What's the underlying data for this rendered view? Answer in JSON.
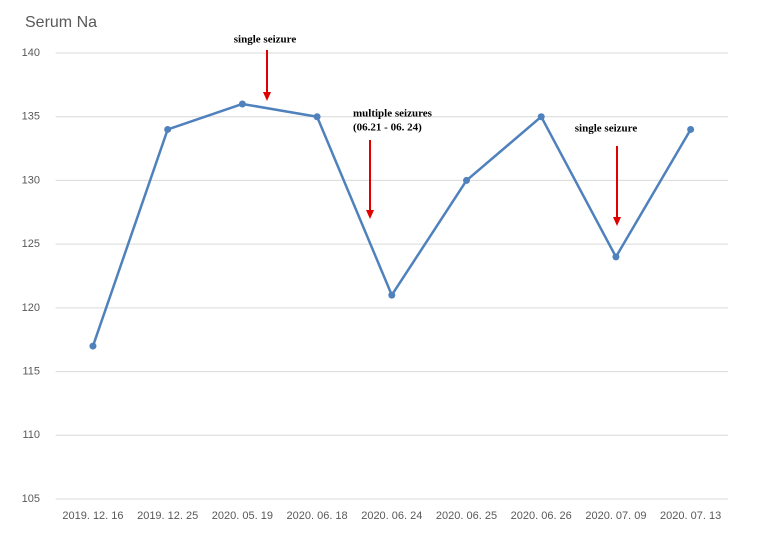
{
  "chart_data": {
    "type": "line",
    "title": "Serum Na",
    "categories": [
      "2019. 12. 16",
      "2019. 12. 25",
      "2020. 05. 19",
      "2020. 06. 18",
      "2020. 06. 24",
      "2020. 06. 25",
      "2020. 06. 26",
      "2020. 07. 09",
      "2020. 07. 13"
    ],
    "series": [
      {
        "name": "Serum Na",
        "color": "#4f81bd",
        "values": [
          117,
          134,
          136,
          135,
          121,
          130,
          135,
          124,
          134
        ]
      }
    ],
    "ylim": [
      105,
      140
    ],
    "yticks": [
      105,
      110,
      115,
      120,
      125,
      130,
      135,
      140
    ],
    "grid": true,
    "annotations": [
      "single seizure",
      "multiple  seizures",
      "(06.21 - 06. 24)",
      "single seizure"
    ]
  }
}
